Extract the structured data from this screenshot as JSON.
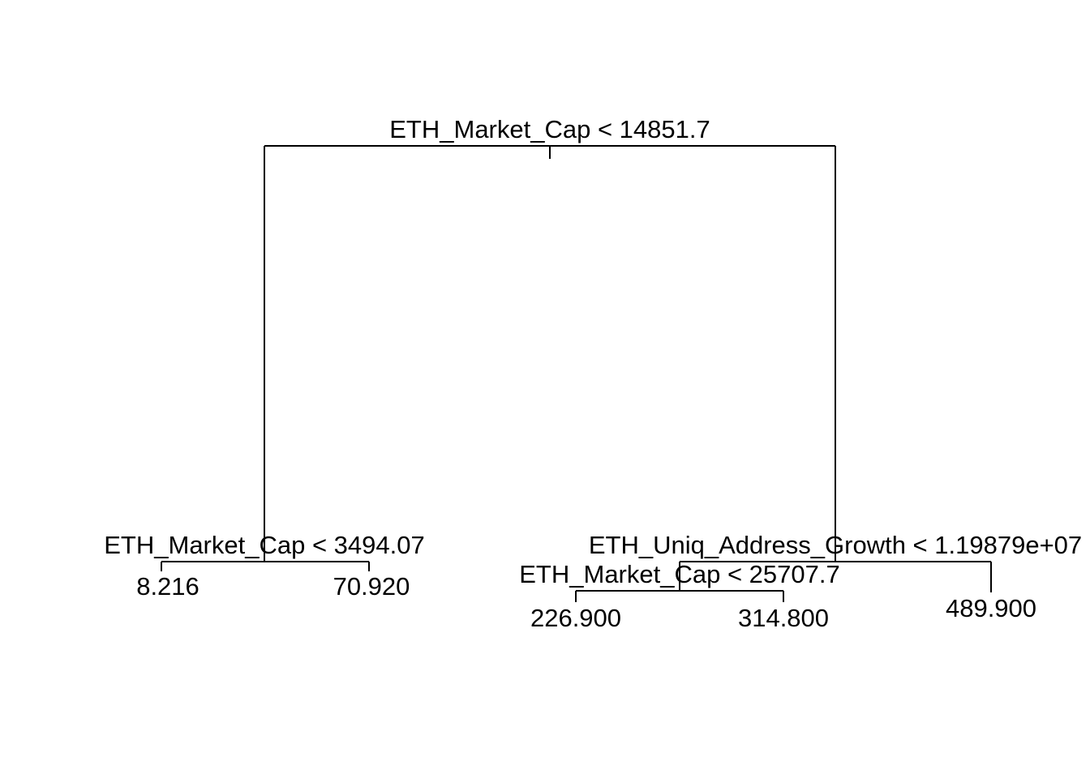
{
  "tree": {
    "root": {
      "split_label": "ETH_Market_Cap < 14851.7",
      "left": {
        "split_label": "ETH_Market_Cap < 3494.07",
        "left": {
          "leaf_value": "8.216"
        },
        "right": {
          "leaf_value": "70.920"
        }
      },
      "right": {
        "split_label": "ETH_Uniq_Address_Growth < 1.19879e+07",
        "left": {
          "split_label": "ETH_Market_Cap < 25707.7",
          "left": {
            "leaf_value": "226.900"
          },
          "right": {
            "leaf_value": "314.800"
          }
        },
        "right": {
          "leaf_value": "489.900"
        }
      }
    }
  },
  "colors": {
    "line": "#000000",
    "text": "#000000",
    "background": "#ffffff"
  }
}
